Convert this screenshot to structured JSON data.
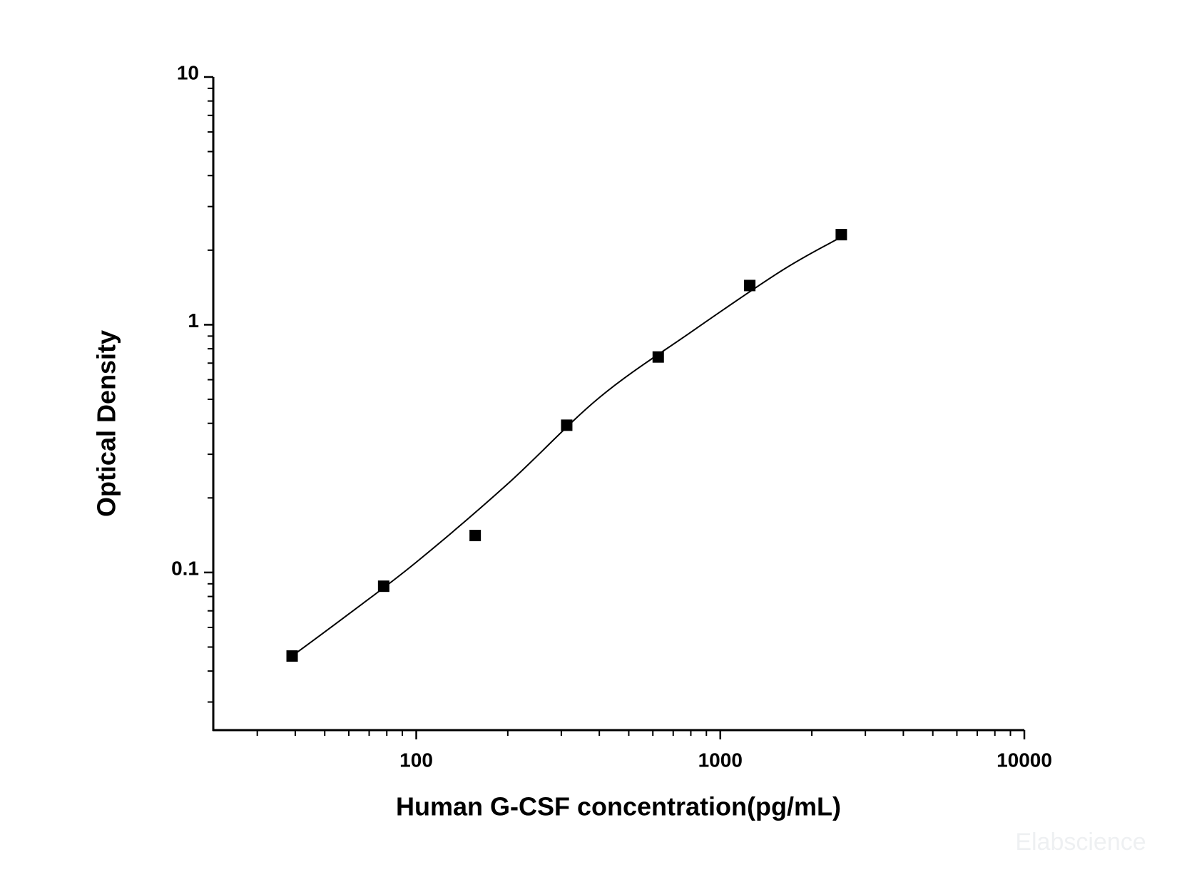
{
  "chart_data": {
    "type": "scatter",
    "x_label": "Human G-CSF concentration(pg/mL)",
    "y_label": "Optical Density",
    "watermark": "Elabscience",
    "x_log": true,
    "y_log": true,
    "xlim": [
      21.5,
      10000
    ],
    "ylim": [
      0.0231,
      10
    ],
    "xticks": [
      100,
      1000,
      10000
    ],
    "yticks": [
      0.1,
      1,
      10
    ],
    "xminorticks": [
      30,
      40,
      50,
      60,
      70,
      80,
      90,
      200,
      300,
      400,
      500,
      600,
      700,
      800,
      900,
      2000,
      3000,
      4000,
      5000,
      6000,
      7000,
      8000,
      9000
    ],
    "yminorticks": [
      0.03,
      0.04,
      0.05,
      0.06,
      0.07,
      0.08,
      0.09,
      0.2,
      0.3,
      0.4,
      0.5,
      0.6,
      0.7,
      0.8,
      0.9,
      2,
      3,
      4,
      5,
      6,
      7,
      8,
      9
    ],
    "color": "#000000",
    "series": [
      {
        "x": [
          39.06,
          78.13,
          156.25,
          312.5,
          625,
          1250,
          2500
        ],
        "values": [
          0.046,
          0.088,
          0.141,
          0.393,
          0.741,
          1.44,
          2.31
        ]
      }
    ],
    "curve": {
      "x": [
        39.06,
        60,
        100,
        200,
        400,
        800,
        1600,
        2500
      ],
      "values": [
        0.046,
        0.068,
        0.11,
        0.228,
        0.508,
        0.933,
        1.66,
        2.26
      ]
    }
  }
}
